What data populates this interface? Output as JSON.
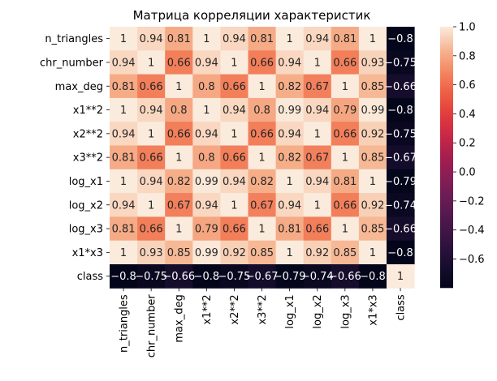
{
  "chart_data": {
    "type": "heatmap",
    "title": "Матрица корреляции характеристик",
    "xlabel": "",
    "ylabel": "",
    "labels": [
      "n_triangles",
      "chr_number",
      "max_deg",
      "x1**2",
      "x2**2",
      "x3**2",
      "log_x1",
      "log_x2",
      "log_x3",
      "x1*x3",
      "class"
    ],
    "matrix": [
      [
        1,
        0.94,
        0.81,
        1,
        0.94,
        0.81,
        1,
        0.94,
        0.81,
        1,
        -0.8
      ],
      [
        0.94,
        1,
        0.66,
        0.94,
        1,
        0.66,
        0.94,
        1,
        0.66,
        0.93,
        -0.75
      ],
      [
        0.81,
        0.66,
        1,
        0.8,
        0.66,
        1,
        0.82,
        0.67,
        1,
        0.85,
        -0.66
      ],
      [
        1,
        0.94,
        0.8,
        1,
        0.94,
        0.8,
        0.99,
        0.94,
        0.79,
        0.99,
        -0.8
      ],
      [
        0.94,
        1,
        0.66,
        0.94,
        1,
        0.66,
        0.94,
        1,
        0.66,
        0.92,
        -0.75
      ],
      [
        0.81,
        0.66,
        1,
        0.8,
        0.66,
        1,
        0.82,
        0.67,
        1,
        0.85,
        -0.67
      ],
      [
        1,
        0.94,
        0.82,
        0.99,
        0.94,
        0.82,
        1,
        0.94,
        0.81,
        1,
        -0.79
      ],
      [
        0.94,
        1,
        0.67,
        0.94,
        1,
        0.67,
        0.94,
        1,
        0.66,
        0.92,
        -0.74
      ],
      [
        0.81,
        0.66,
        1,
        0.79,
        0.66,
        1,
        0.81,
        0.66,
        1,
        0.85,
        -0.66
      ],
      [
        1,
        0.93,
        0.85,
        0.99,
        0.92,
        0.85,
        1,
        0.92,
        0.85,
        1,
        -0.8
      ],
      [
        -0.8,
        -0.75,
        -0.66,
        -0.8,
        -0.75,
        -0.67,
        -0.79,
        -0.74,
        -0.66,
        -0.8,
        1
      ]
    ],
    "colorbar": {
      "vmin": -0.8,
      "vmax": 1,
      "ticks": [
        -0.6,
        -0.4,
        -0.2,
        0.0,
        0.2,
        0.4,
        0.6,
        0.8,
        1.0
      ],
      "tick_labels": [
        "−0.6",
        "−0.4",
        "−0.2",
        "0.0",
        "0.2",
        "0.4",
        "0.6",
        "0.8",
        "1.0"
      ],
      "colormap": "rocket"
    },
    "grid": false,
    "annotations": true
  }
}
